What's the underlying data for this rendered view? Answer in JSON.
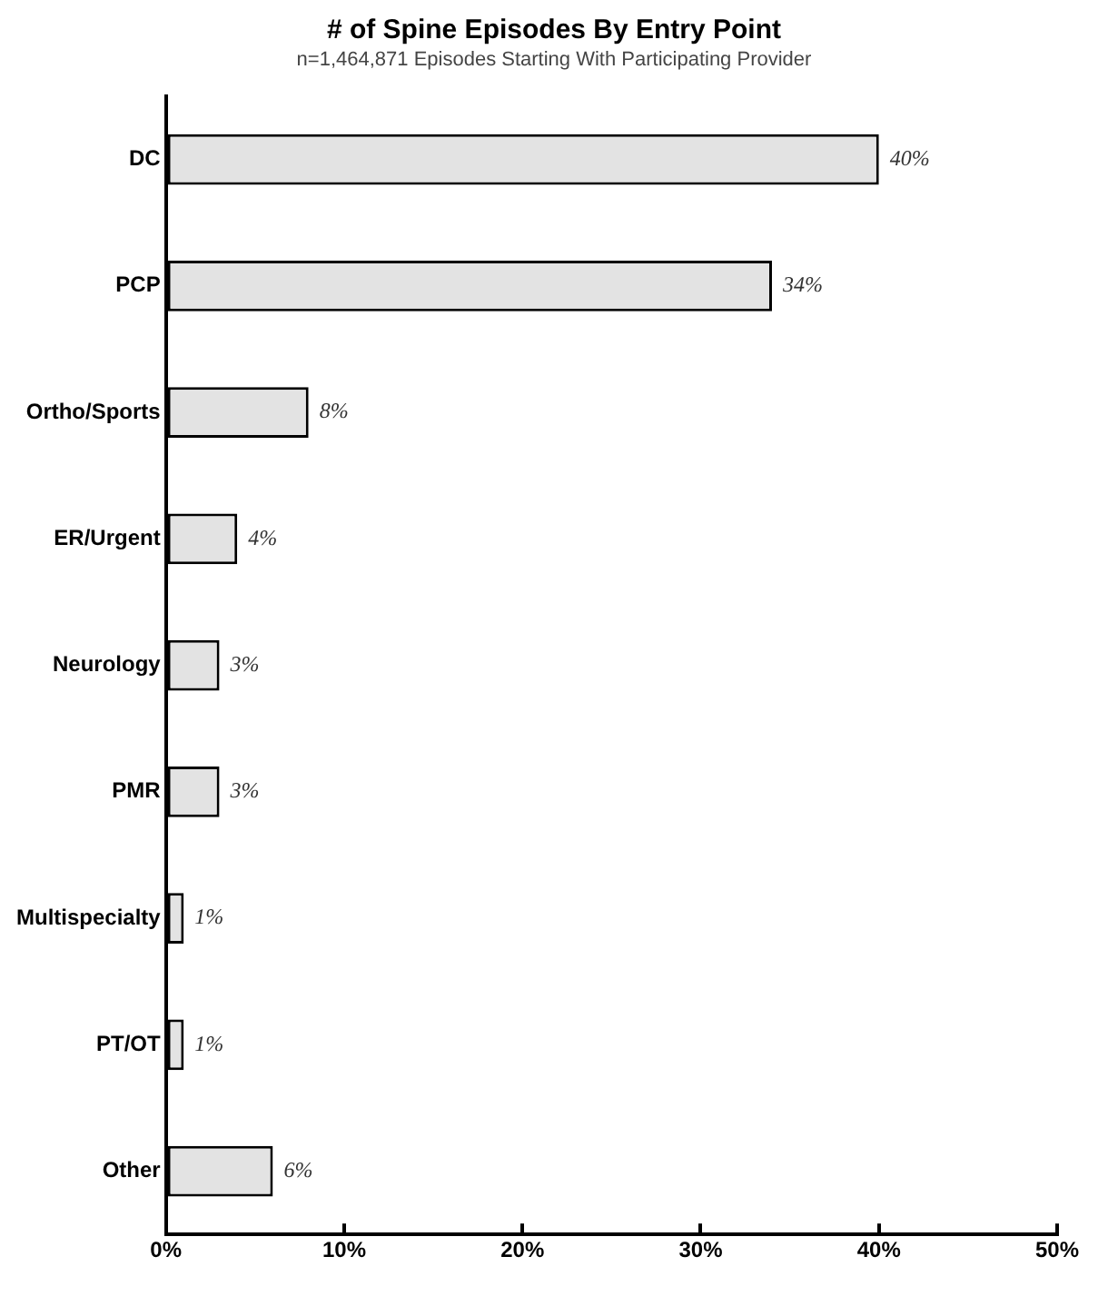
{
  "chart_data": {
    "type": "bar",
    "orientation": "horizontal",
    "title": "# of Spine Episodes By Entry Point",
    "subtitle": "n=1,464,871 Episodes Starting With Participating Provider",
    "categories": [
      "DC",
      "PCP",
      "Ortho/Sports",
      "ER/Urgent",
      "Neurology",
      "PMR",
      "Multispecialty",
      "PT/OT",
      "Other"
    ],
    "values": [
      40,
      34,
      8,
      4,
      3,
      3,
      1,
      1,
      6
    ],
    "value_labels": [
      "40%",
      "34%",
      "8%",
      "4%",
      "3%",
      "3%",
      "1%",
      "1%",
      "6%"
    ],
    "color": "#e3e3e3",
    "xlim": [
      0,
      50
    ],
    "xticks": [
      {
        "value": 0,
        "label": "0%"
      },
      {
        "value": 10,
        "label": "10%"
      },
      {
        "value": 20,
        "label": "20%"
      },
      {
        "value": 30,
        "label": "30%"
      },
      {
        "value": 40,
        "label": "40%"
      },
      {
        "value": 50,
        "label": "50%"
      }
    ],
    "grid": false,
    "legend": false
  }
}
